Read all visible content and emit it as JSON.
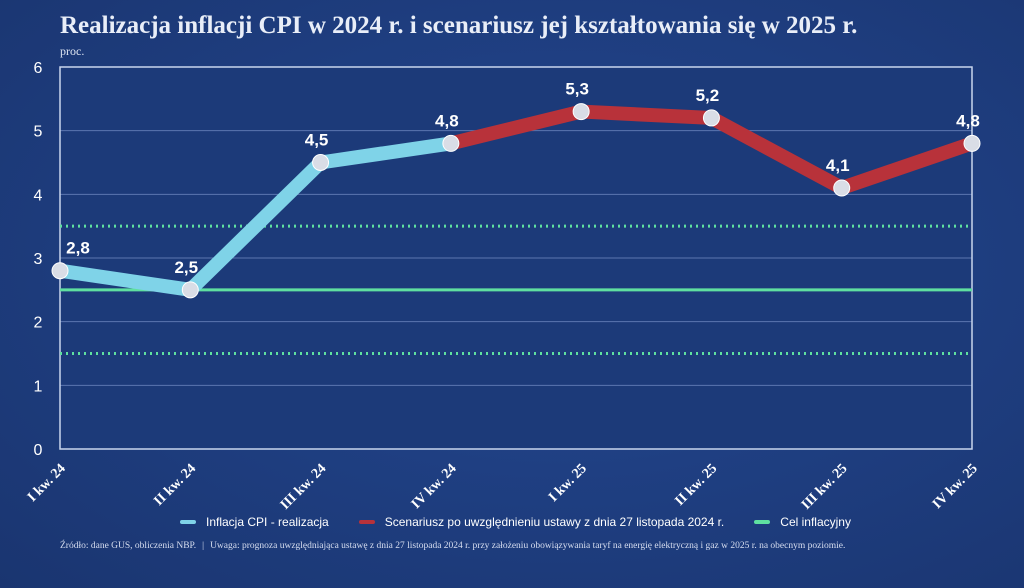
{
  "title": "Realizacja inflacji CPI w 2024 r. i scenariusz jej kształtowania się w 2025 r.",
  "unit": "proc.",
  "chart_data": {
    "type": "line",
    "categories": [
      "I kw. 24",
      "II kw. 24",
      "III kw. 24",
      "IV kw. 24",
      "I kw. 25",
      "II kw. 25",
      "III kw. 25",
      "IV kw. 25"
    ],
    "ylim": [
      0,
      6
    ],
    "yticks": [
      "0",
      "1",
      "2",
      "3",
      "4",
      "5",
      "6"
    ],
    "series": [
      {
        "name": "Inflacja CPI - realizacja",
        "color": "#7fd3e8",
        "values": [
          2.8,
          2.5,
          4.5,
          4.8,
          null,
          null,
          null,
          null
        ]
      },
      {
        "name": "Scenariusz po uwzględnieniu ustawy z dnia 27 listopada 2024 r.",
        "color": "#b8323a",
        "values": [
          null,
          null,
          null,
          4.8,
          5.3,
          5.2,
          4.1,
          4.8
        ]
      }
    ],
    "data_labels": [
      "2,8",
      "2,5",
      "4,5",
      "4,8",
      "5,3",
      "5,2",
      "4,1",
      "4,8"
    ],
    "target": {
      "name": "Cel inflacyjny",
      "color": "#5fe0a0",
      "value": 2.5,
      "band": [
        1.5,
        3.5
      ]
    },
    "grid": true,
    "legend_position": "bottom"
  },
  "footnote": {
    "source": "Źródło: dane GUS, obliczenia NBP.",
    "separator": "|",
    "note": "Uwaga: prognoza uwzględniająca ustawę z dnia 27 listopada 2024 r. przy założeniu obowiązywania taryf na energię elektryczną i gaz w 2025 r. na obecnym poziomie."
  }
}
